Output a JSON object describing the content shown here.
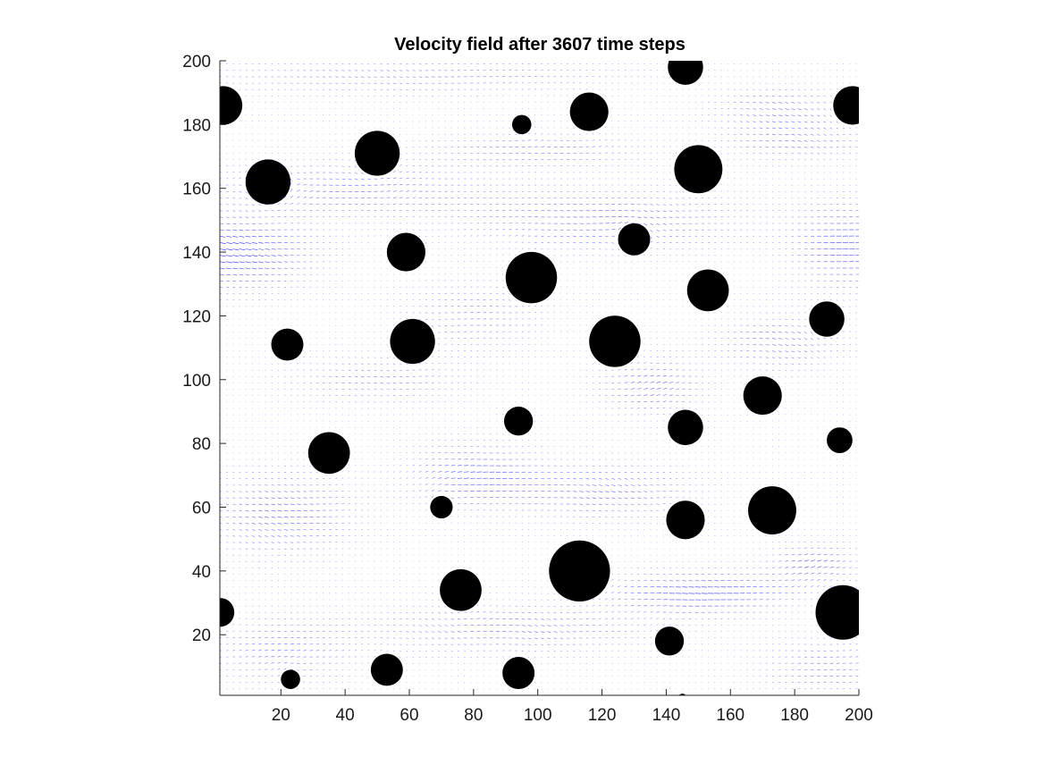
{
  "chart_data": {
    "type": "quiver",
    "title": "Velocity field after 3607 time steps",
    "xlabel": "",
    "ylabel": "",
    "xlim": [
      1,
      200
    ],
    "ylim": [
      1,
      200
    ],
    "x_ticks": [
      20,
      40,
      60,
      80,
      100,
      120,
      140,
      160,
      180,
      200
    ],
    "y_ticks": [
      20,
      40,
      60,
      80,
      100,
      120,
      140,
      160,
      180,
      200
    ],
    "grid": false,
    "legend": "none",
    "arrow_color": "#0000ff",
    "obstacle_color": "#000000",
    "obstacles": [
      {
        "x": 146,
        "y": 198,
        "r": 5.5
      },
      {
        "x": 2,
        "y": 186,
        "r": 6
      },
      {
        "x": 198,
        "y": 186,
        "r": 6
      },
      {
        "x": 116,
        "y": 184,
        "r": 6
      },
      {
        "x": 95,
        "y": 180,
        "r": 3
      },
      {
        "x": 50,
        "y": 171,
        "r": 7
      },
      {
        "x": 150,
        "y": 166,
        "r": 7.5
      },
      {
        "x": 16,
        "y": 162,
        "r": 7
      },
      {
        "x": 130,
        "y": 144,
        "r": 5
      },
      {
        "x": 59,
        "y": 140,
        "r": 6
      },
      {
        "x": 98,
        "y": 132,
        "r": 8
      },
      {
        "x": 153,
        "y": 128,
        "r": 6.5
      },
      {
        "x": 190,
        "y": 119,
        "r": 5.5
      },
      {
        "x": 22,
        "y": 111,
        "r": 5
      },
      {
        "x": 61,
        "y": 112,
        "r": 7
      },
      {
        "x": 124,
        "y": 112,
        "r": 8
      },
      {
        "x": 170,
        "y": 95,
        "r": 6
      },
      {
        "x": 94,
        "y": 87,
        "r": 4.5
      },
      {
        "x": 146,
        "y": 85,
        "r": 5.5
      },
      {
        "x": 194,
        "y": 81,
        "r": 4
      },
      {
        "x": 35,
        "y": 77,
        "r": 6.5
      },
      {
        "x": 70,
        "y": 60,
        "r": 3.5
      },
      {
        "x": 173,
        "y": 59,
        "r": 7.5
      },
      {
        "x": 146,
        "y": 56,
        "r": 6
      },
      {
        "x": 113,
        "y": 40,
        "r": 9.5
      },
      {
        "x": 76,
        "y": 34,
        "r": 6.5
      },
      {
        "x": 1,
        "y": 27,
        "r": 4.5
      },
      {
        "x": 195,
        "y": 27,
        "r": 8.5
      },
      {
        "x": 141,
        "y": 18,
        "r": 4.5
      },
      {
        "x": 53,
        "y": 9,
        "r": 5
      },
      {
        "x": 94,
        "y": 8,
        "r": 5
      },
      {
        "x": 23,
        "y": 6,
        "r": 3
      },
      {
        "x": 145,
        "y": 0,
        "r": 1.5
      }
    ],
    "flow_bands": [
      {
        "x": 2,
        "y": 140,
        "sx": 24,
        "sy": 10,
        "strength": 0.9
      },
      {
        "x": 195,
        "y": 142,
        "sx": 14,
        "sy": 12,
        "strength": 0.7
      },
      {
        "x": 40,
        "y": 160,
        "sx": 40,
        "sy": 8,
        "strength": 0.45
      },
      {
        "x": 120,
        "y": 150,
        "sx": 40,
        "sy": 9,
        "strength": 0.5
      },
      {
        "x": 100,
        "y": 172,
        "sx": 30,
        "sy": 5,
        "strength": 0.4
      },
      {
        "x": 180,
        "y": 175,
        "sx": 20,
        "sy": 6,
        "strength": 0.4
      },
      {
        "x": 175,
        "y": 185,
        "sx": 18,
        "sy": 6,
        "strength": 0.45
      },
      {
        "x": 60,
        "y": 195,
        "sx": 60,
        "sy": 5,
        "strength": 0.35
      },
      {
        "x": 80,
        "y": 120,
        "sx": 20,
        "sy": 10,
        "strength": 0.35
      },
      {
        "x": 175,
        "y": 112,
        "sx": 18,
        "sy": 8,
        "strength": 0.45
      },
      {
        "x": 135,
        "y": 98,
        "sx": 14,
        "sy": 8,
        "strength": 0.55
      },
      {
        "x": 50,
        "y": 100,
        "sx": 25,
        "sy": 7,
        "strength": 0.35
      },
      {
        "x": 80,
        "y": 70,
        "sx": 18,
        "sy": 9,
        "strength": 0.65
      },
      {
        "x": 120,
        "y": 65,
        "sx": 25,
        "sy": 8,
        "strength": 0.5
      },
      {
        "x": 20,
        "y": 58,
        "sx": 20,
        "sy": 12,
        "strength": 0.55
      },
      {
        "x": 150,
        "y": 33,
        "sx": 25,
        "sy": 6,
        "strength": 0.8
      },
      {
        "x": 185,
        "y": 42,
        "sx": 12,
        "sy": 6,
        "strength": 0.6
      },
      {
        "x": 90,
        "y": 22,
        "sx": 40,
        "sy": 7,
        "strength": 0.45
      },
      {
        "x": 20,
        "y": 15,
        "sx": 20,
        "sy": 10,
        "strength": 0.4
      },
      {
        "x": 190,
        "y": 10,
        "sx": 18,
        "sy": 8,
        "strength": 0.4
      }
    ]
  }
}
